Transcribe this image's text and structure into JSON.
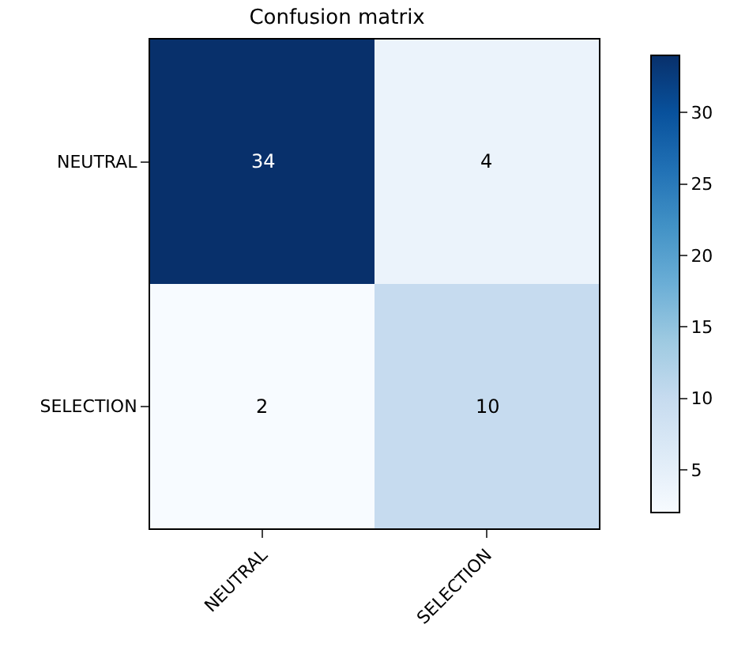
{
  "chart_data": {
    "type": "heatmap",
    "title": "Confusion matrix",
    "categories": [
      "NEUTRAL",
      "SELECTION"
    ],
    "y_categories": [
      "NEUTRAL",
      "SELECTION"
    ],
    "cells": [
      [
        34,
        4
      ],
      [
        2,
        10
      ]
    ],
    "data_labels": true,
    "clim": [
      2,
      34
    ],
    "cticks": [
      5,
      10,
      15,
      20,
      25,
      30
    ]
  }
}
